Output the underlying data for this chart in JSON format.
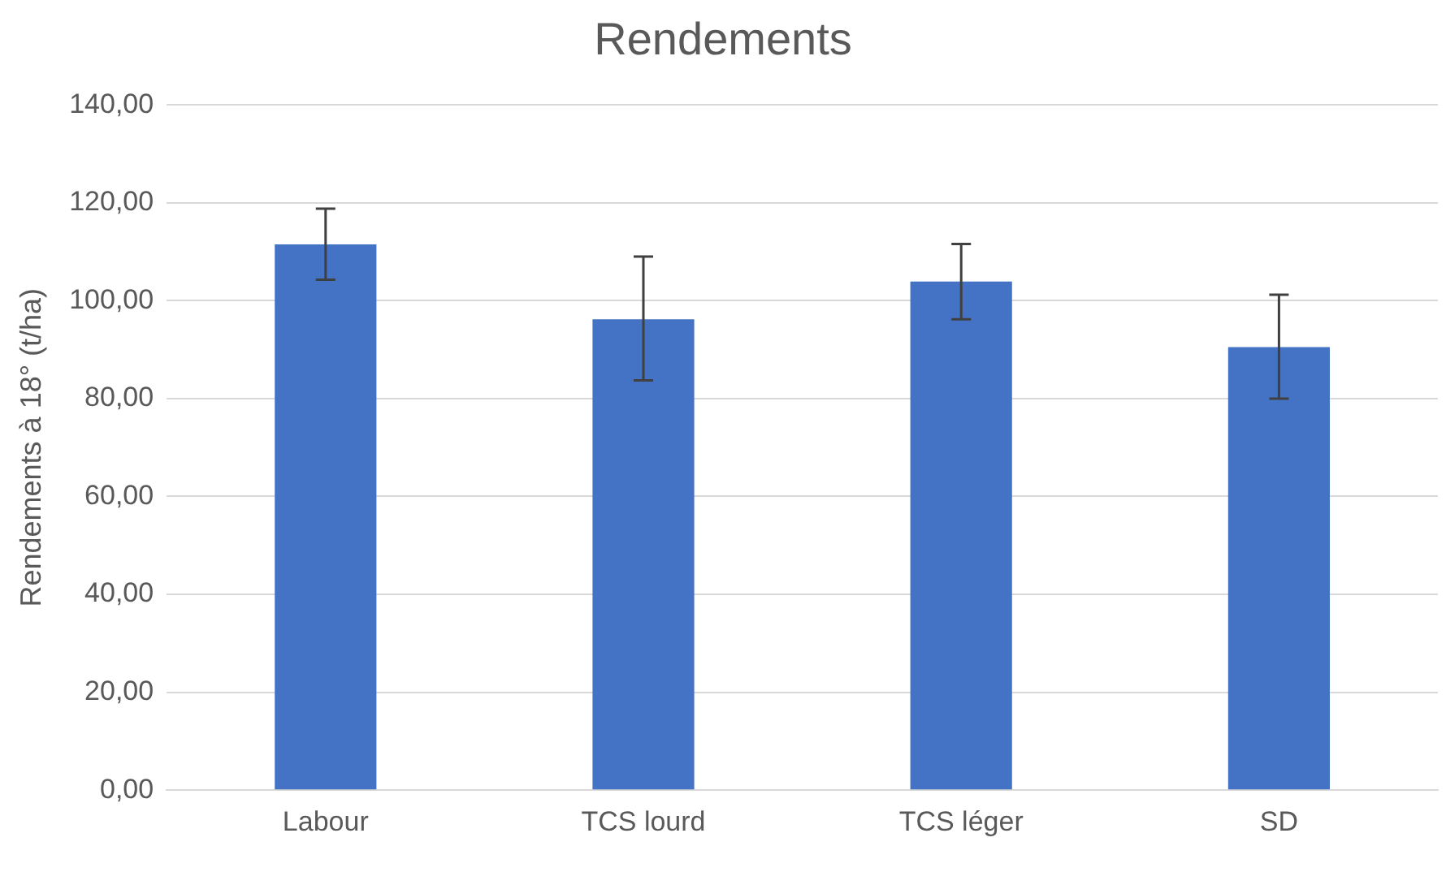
{
  "chart_data": {
    "type": "bar",
    "title": "Rendements",
    "ylabel": "Rendements à 18° (t/ha)",
    "categories": [
      "Labour",
      "TCS lourd",
      "TCS léger",
      "SD"
    ],
    "values": [
      111.5,
      96.2,
      103.9,
      90.5
    ],
    "errors": [
      [
        104.3,
        118.8
      ],
      [
        83.7,
        109.0
      ],
      [
        96.2,
        111.6
      ],
      [
        80.0,
        101.2
      ]
    ],
    "color": "#4472c4",
    "ylim": [
      0,
      140
    ],
    "yticks": [
      {
        "value": 0,
        "label": "0,00"
      },
      {
        "value": 20,
        "label": "20,00"
      },
      {
        "value": 40,
        "label": "40,00"
      },
      {
        "value": 60,
        "label": "60,00"
      },
      {
        "value": 80,
        "label": "80,00"
      },
      {
        "value": 100,
        "label": "100,00"
      },
      {
        "value": 120,
        "label": "120,00"
      },
      {
        "value": 140,
        "label": "140,00"
      }
    ],
    "grid": "y",
    "legend": false
  }
}
